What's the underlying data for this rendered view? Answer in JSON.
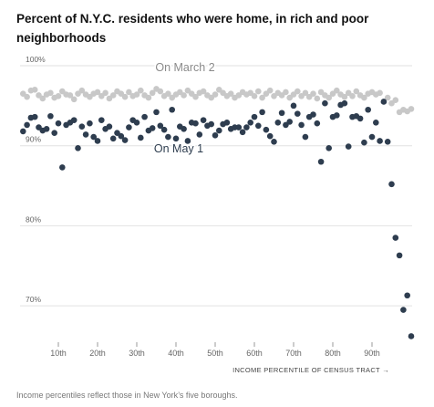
{
  "chart_data": {
    "type": "scatter",
    "title": "Percent of N.Y.C. residents who were home, in rich and poor neighborhoods",
    "xlabel": "INCOME PERCENTILE OF CENSUS TRACT →",
    "ylabel": "",
    "xlim": [
      0,
      100
    ],
    "ylim": [
      65,
      100
    ],
    "y_ticks": [
      {
        "value": 100,
        "label": "100%"
      },
      {
        "value": 90,
        "label": "90%"
      },
      {
        "value": 80,
        "label": "80%"
      },
      {
        "value": 70,
        "label": "70%"
      }
    ],
    "x_ticks": [
      {
        "value": 10,
        "label": "10th"
      },
      {
        "value": 20,
        "label": "20th"
      },
      {
        "value": 30,
        "label": "30th"
      },
      {
        "value": 40,
        "label": "40th"
      },
      {
        "value": 50,
        "label": "50th"
      },
      {
        "value": 60,
        "label": "60th"
      },
      {
        "value": 70,
        "label": "70th"
      },
      {
        "value": 80,
        "label": "80th"
      },
      {
        "value": 90,
        "label": "90th"
      }
    ],
    "grid": true,
    "series": [
      {
        "name": "On March 2",
        "color": "#c8c8c8",
        "x": [
          1,
          2,
          3,
          4,
          5,
          6,
          7,
          8,
          9,
          10,
          11,
          12,
          13,
          14,
          15,
          16,
          17,
          18,
          19,
          20,
          21,
          22,
          23,
          24,
          25,
          26,
          27,
          28,
          29,
          30,
          31,
          32,
          33,
          34,
          35,
          36,
          37,
          38,
          39,
          40,
          41,
          42,
          43,
          44,
          45,
          46,
          47,
          48,
          49,
          50,
          51,
          52,
          53,
          54,
          55,
          56,
          57,
          58,
          59,
          60,
          61,
          62,
          63,
          64,
          65,
          66,
          67,
          68,
          69,
          70,
          71,
          72,
          73,
          74,
          75,
          76,
          77,
          78,
          79,
          80,
          81,
          82,
          83,
          84,
          85,
          86,
          87,
          88,
          89,
          90,
          91,
          92,
          93,
          94,
          95,
          96,
          97,
          98,
          99,
          100
        ],
        "y": [
          96.5,
          96.1,
          96.9,
          97.0,
          96.3,
          95.9,
          96.4,
          96.6,
          96.0,
          96.2,
          96.8,
          96.4,
          96.3,
          95.8,
          96.5,
          96.9,
          96.4,
          96.1,
          96.5,
          96.7,
          96.2,
          96.6,
          95.9,
          96.3,
          96.8,
          96.5,
          96.1,
          96.7,
          96.2,
          96.4,
          96.9,
          96.3,
          96.0,
          96.6,
          97.1,
          96.8,
          96.2,
          96.5,
          96.0,
          96.4,
          96.7,
          96.3,
          96.9,
          96.5,
          96.1,
          96.6,
          96.8,
          96.3,
          96.0,
          96.4,
          97.0,
          96.6,
          96.2,
          96.5,
          96.0,
          96.3,
          96.7,
          96.4,
          96.6,
          96.2,
          96.8,
          96.0,
          96.5,
          96.9,
          96.2,
          96.6,
          96.3,
          96.7,
          96.0,
          96.4,
          96.8,
          96.2,
          96.6,
          96.1,
          96.5,
          95.9,
          96.7,
          96.3,
          96.0,
          96.5,
          96.9,
          96.4,
          96.1,
          96.6,
          96.2,
          96.8,
          96.3,
          96.0,
          96.5,
          96.7,
          96.4,
          96.6,
          95.5,
          96.0,
          95.3,
          95.7,
          94.2,
          94.5,
          94.3,
          94.6
        ]
      },
      {
        "name": "On May 1",
        "color": "#2e3d4f",
        "x": [
          1,
          2,
          3,
          4,
          5,
          6,
          7,
          8,
          9,
          10,
          11,
          12,
          13,
          14,
          15,
          16,
          17,
          18,
          19,
          20,
          21,
          22,
          23,
          24,
          25,
          26,
          27,
          28,
          29,
          30,
          31,
          32,
          33,
          34,
          35,
          36,
          37,
          38,
          39,
          40,
          41,
          42,
          43,
          44,
          45,
          46,
          47,
          48,
          49,
          50,
          51,
          52,
          53,
          54,
          55,
          56,
          57,
          58,
          59,
          60,
          61,
          62,
          63,
          64,
          65,
          66,
          67,
          68,
          69,
          70,
          71,
          72,
          73,
          74,
          75,
          76,
          77,
          78,
          79,
          80,
          81,
          82,
          83,
          84,
          85,
          86,
          87,
          88,
          89,
          90,
          91,
          92,
          93,
          94,
          95,
          96,
          97,
          98,
          99,
          100
        ],
        "y": [
          91.8,
          92.6,
          93.5,
          93.6,
          92.3,
          91.9,
          92.1,
          93.7,
          91.6,
          92.8,
          87.3,
          92.6,
          92.9,
          93.2,
          89.7,
          92.4,
          91.4,
          92.8,
          91.1,
          90.6,
          93.2,
          92.1,
          92.4,
          90.9,
          91.6,
          91.2,
          90.7,
          92.3,
          93.2,
          92.9,
          91.0,
          93.6,
          91.9,
          92.2,
          94.2,
          92.5,
          92.0,
          91.1,
          94.5,
          90.9,
          92.4,
          92.1,
          90.6,
          92.9,
          92.8,
          91.4,
          93.2,
          92.5,
          92.7,
          91.3,
          91.9,
          92.7,
          92.9,
          92.1,
          92.3,
          92.3,
          91.7,
          92.3,
          92.9,
          93.6,
          92.5,
          94.2,
          92.0,
          91.2,
          90.5,
          92.9,
          94.1,
          92.6,
          93.0,
          95.0,
          94.0,
          92.6,
          91.1,
          93.6,
          93.9,
          92.8,
          88.0,
          95.3,
          89.7,
          93.6,
          93.8,
          95.1,
          95.3,
          89.9,
          93.6,
          93.7,
          93.4,
          90.4,
          94.5,
          91.1,
          92.9,
          90.6,
          95.5,
          90.5,
          85.2,
          78.5,
          76.3,
          69.5,
          71.3,
          66.2
        ]
      }
    ],
    "annotations": [
      {
        "text": "On March 2"
      },
      {
        "text": "On May 1"
      }
    ],
    "footnote": "Income percentiles reflect those in New York’s five boroughs."
  }
}
